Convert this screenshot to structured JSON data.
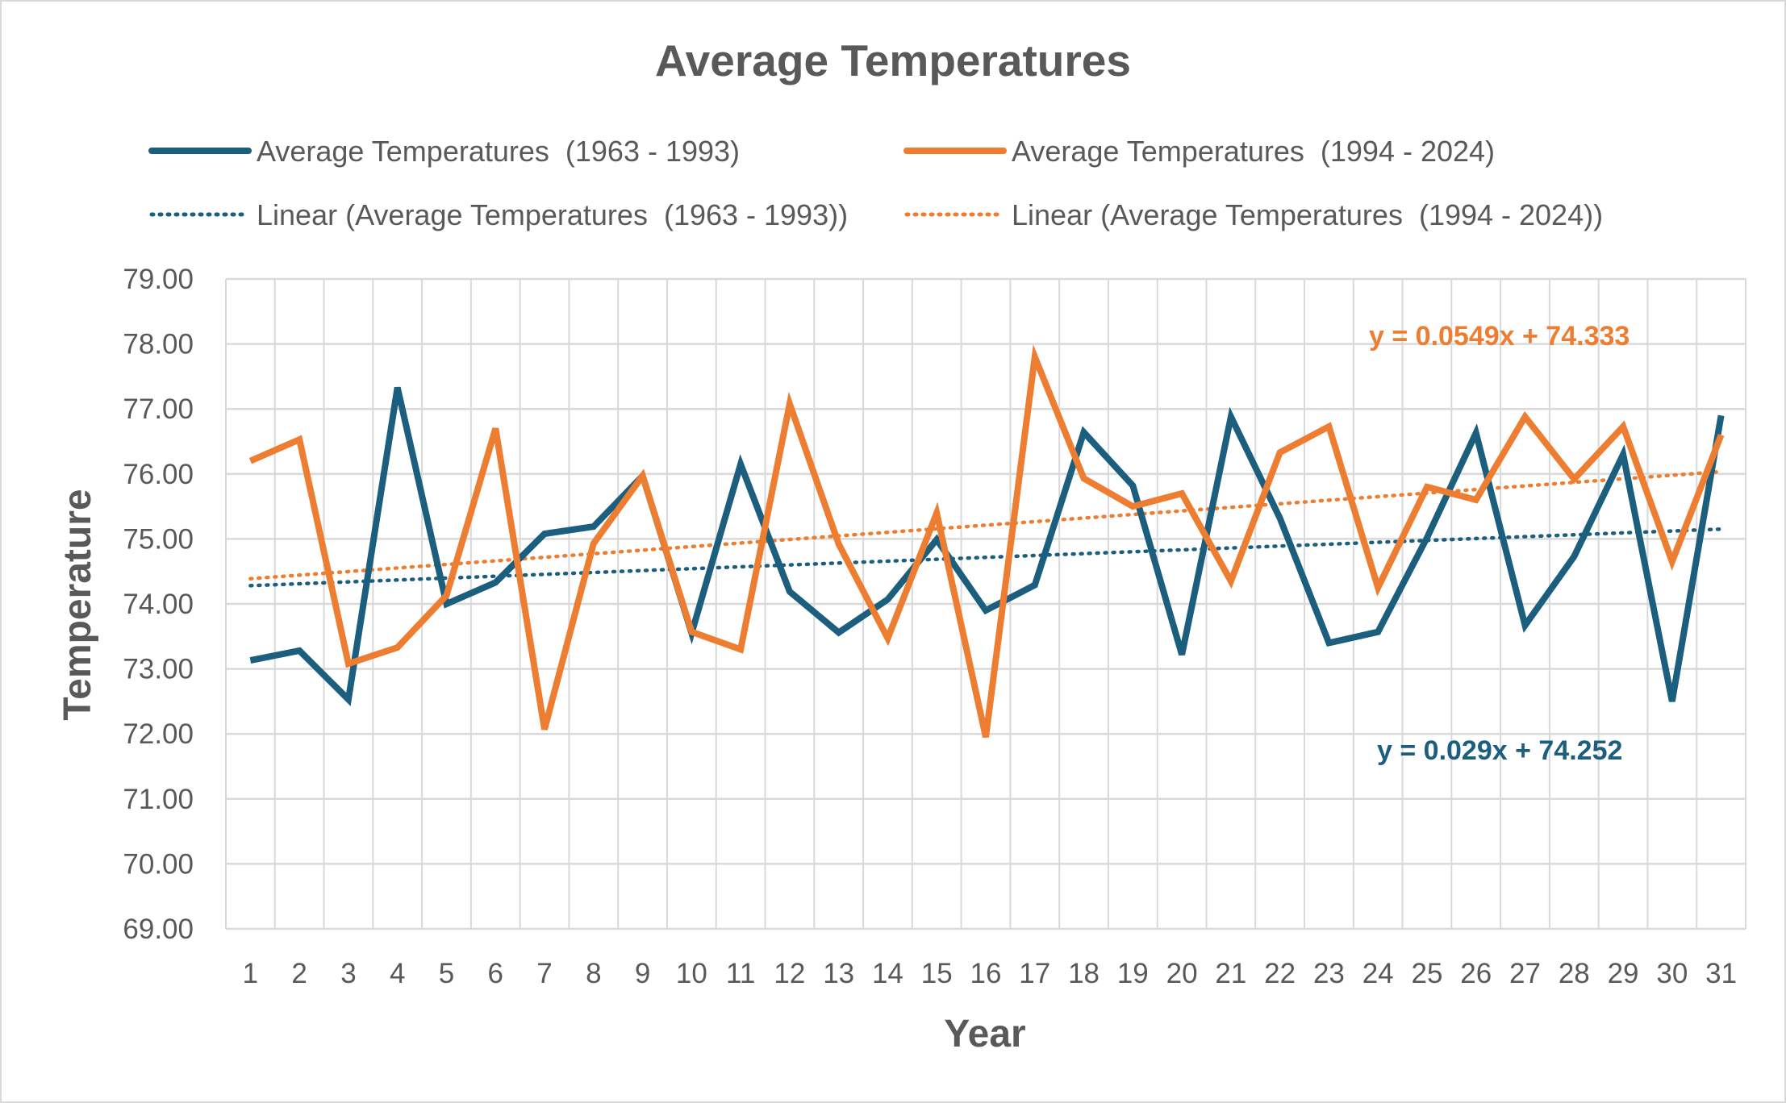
{
  "chart_data": {
    "type": "line",
    "title": "Average Temperatures",
    "xlabel": "Year",
    "ylabel": "Temperature",
    "x": [
      1,
      2,
      3,
      4,
      5,
      6,
      7,
      8,
      9,
      10,
      11,
      12,
      13,
      14,
      15,
      16,
      17,
      18,
      19,
      20,
      21,
      22,
      23,
      24,
      25,
      26,
      27,
      28,
      29,
      30,
      31
    ],
    "ylim": [
      69.0,
      79.0
    ],
    "ytick_labels": [
      "69.00",
      "70.00",
      "71.00",
      "72.00",
      "73.00",
      "74.00",
      "75.00",
      "76.00",
      "77.00",
      "78.00",
      "79.00"
    ],
    "xtick_labels": [
      "1",
      "2",
      "3",
      "4",
      "5",
      "6",
      "7",
      "8",
      "9",
      "10",
      "11",
      "12",
      "13",
      "14",
      "15",
      "16",
      "17",
      "18",
      "19",
      "20",
      "21",
      "22",
      "23",
      "24",
      "25",
      "26",
      "27",
      "28",
      "29",
      "30",
      "31"
    ],
    "grid": true,
    "legend_position": "top",
    "series": [
      {
        "name": "Average Temperatures  (1963 - 1993)",
        "color": "#1b5e7e",
        "values": [
          73.13,
          73.28,
          72.53,
          77.33,
          74.0,
          74.33,
          75.08,
          75.19,
          75.97,
          73.55,
          76.15,
          74.19,
          73.56,
          74.07,
          74.99,
          73.9,
          74.29,
          76.64,
          75.82,
          73.22,
          76.88,
          75.32,
          73.4,
          73.57,
          75.02,
          76.63,
          73.67,
          74.73,
          76.3,
          72.5,
          76.9
        ]
      },
      {
        "name": "Average Temperatures  (1994 - 2024)",
        "color": "#ed7d31",
        "values": [
          76.2,
          76.53,
          73.08,
          73.33,
          74.13,
          76.7,
          72.07,
          74.93,
          75.97,
          73.57,
          73.3,
          77.08,
          74.92,
          73.47,
          75.4,
          71.95,
          77.8,
          75.93,
          75.5,
          75.7,
          74.35,
          76.33,
          76.73,
          74.25,
          75.8,
          75.6,
          76.88,
          75.92,
          76.73,
          74.65,
          76.6
        ]
      }
    ],
    "trendlines": [
      {
        "name": "Linear (Average Temperatures  (1963 - 1993))",
        "color": "#1b5e7e",
        "slope": 0.029,
        "intercept": 74.252,
        "equation": "y = 0.029x + 74.252"
      },
      {
        "name": "Linear (Average Temperatures  (1994 - 2024))",
        "color": "#ed7d31",
        "slope": 0.0549,
        "intercept": 74.333,
        "equation": "y = 0.0549x + 74.333"
      }
    ]
  }
}
